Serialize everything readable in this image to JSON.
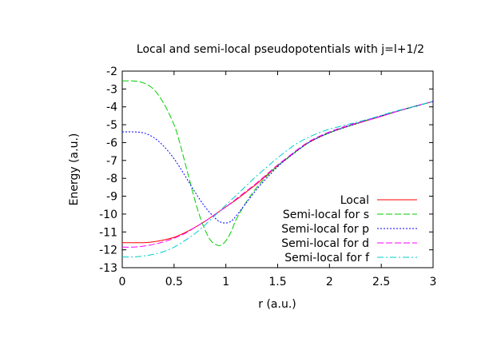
{
  "chart_data": {
    "type": "line",
    "title": "Local and semi-local pseudopotentials with j=l+1/2",
    "xlabel": "r (a.u.)",
    "ylabel": "Energy (a.u.)",
    "xlim": [
      0,
      3
    ],
    "ylim": [
      -13,
      -2
    ],
    "xticks": [
      0,
      0.5,
      1,
      1.5,
      2,
      2.5,
      3
    ],
    "xtick_labels": [
      "0",
      "0.5",
      "1",
      "1.5",
      "2",
      "2.5",
      "3"
    ],
    "yticks": [
      -13,
      -12,
      -11,
      -10,
      -9,
      -8,
      -7,
      -6,
      -5,
      -4,
      -3,
      -2
    ],
    "ytick_labels": [
      "-13",
      "-12",
      "-11",
      "-10",
      "-9",
      "-8",
      "-7",
      "-6",
      "-5",
      "-4",
      "-3",
      "-2"
    ],
    "grid": false,
    "legend_position": "bottom-right",
    "series": [
      {
        "name": "Local",
        "color": "#ff0000",
        "dash": "solid",
        "x": [
          0,
          0.1,
          0.2,
          0.3,
          0.4,
          0.5,
          0.6,
          0.7,
          0.8,
          0.9,
          1.0,
          1.1,
          1.2,
          1.3,
          1.4,
          1.5,
          1.6,
          1.7,
          1.8,
          1.9,
          2.0,
          2.2,
          2.4,
          2.6,
          2.8,
          3.0
        ],
        "y": [
          -11.6,
          -11.6,
          -11.6,
          -11.55,
          -11.45,
          -11.3,
          -11.05,
          -10.75,
          -10.4,
          -10.0,
          -9.6,
          -9.2,
          -8.75,
          -8.3,
          -7.8,
          -7.3,
          -6.85,
          -6.4,
          -6.0,
          -5.7,
          -5.45,
          -5.05,
          -4.7,
          -4.35,
          -4.0,
          -3.7
        ]
      },
      {
        "name": "Semi-local for s",
        "color": "#00cc00",
        "dash": "longdash",
        "x": [
          0,
          0.1,
          0.2,
          0.3,
          0.4,
          0.5,
          0.55,
          0.6,
          0.65,
          0.7,
          0.75,
          0.8,
          0.85,
          0.9,
          0.95,
          1.0,
          1.05,
          1.1,
          1.2,
          1.3,
          1.4,
          1.5,
          1.6,
          1.8,
          2.0,
          2.2,
          2.5,
          3.0
        ],
        "y": [
          -2.55,
          -2.55,
          -2.65,
          -3.0,
          -3.8,
          -5.0,
          -5.9,
          -7.0,
          -8.1,
          -9.2,
          -10.15,
          -10.9,
          -11.45,
          -11.7,
          -11.75,
          -11.5,
          -11.0,
          -10.3,
          -9.3,
          -8.5,
          -7.85,
          -7.3,
          -6.85,
          -6.0,
          -5.45,
          -5.05,
          -4.5,
          -3.7
        ]
      },
      {
        "name": "Semi-local for p",
        "color": "#0000ff",
        "dash": "dotted",
        "x": [
          0,
          0.1,
          0.2,
          0.3,
          0.4,
          0.5,
          0.6,
          0.7,
          0.8,
          0.9,
          0.95,
          1.0,
          1.05,
          1.1,
          1.2,
          1.3,
          1.4,
          1.5,
          1.6,
          1.8,
          2.0,
          2.2,
          2.5,
          3.0
        ],
        "y": [
          -5.4,
          -5.4,
          -5.45,
          -5.7,
          -6.2,
          -6.9,
          -7.8,
          -8.75,
          -9.6,
          -10.25,
          -10.45,
          -10.5,
          -10.4,
          -10.1,
          -9.35,
          -8.6,
          -7.95,
          -7.35,
          -6.85,
          -6.0,
          -5.45,
          -5.05,
          -4.5,
          -3.7
        ]
      },
      {
        "name": "Semi-local for d",
        "color": "#ff00ff",
        "dash": "longdash",
        "x": [
          0,
          0.1,
          0.2,
          0.3,
          0.4,
          0.5,
          0.6,
          0.7,
          0.8,
          0.9,
          1.0,
          1.1,
          1.2,
          1.3,
          1.4,
          1.5,
          1.6,
          1.7,
          1.8,
          1.9,
          2.0,
          2.2,
          2.4,
          2.6,
          2.8,
          3.0
        ],
        "y": [
          -11.85,
          -11.85,
          -11.8,
          -11.7,
          -11.55,
          -11.35,
          -11.1,
          -10.75,
          -10.4,
          -10.0,
          -9.6,
          -9.15,
          -8.7,
          -8.25,
          -7.75,
          -7.25,
          -6.8,
          -6.35,
          -5.95,
          -5.65,
          -5.4,
          -5.0,
          -4.7,
          -4.35,
          -4.0,
          -3.7
        ]
      },
      {
        "name": "Semi-local for f",
        "color": "#00cccc",
        "dash": "dashdot",
        "x": [
          0,
          0.1,
          0.2,
          0.3,
          0.4,
          0.5,
          0.6,
          0.7,
          0.8,
          0.9,
          1.0,
          1.1,
          1.2,
          1.3,
          1.4,
          1.5,
          1.6,
          1.7,
          1.8,
          1.9,
          2.0,
          2.2,
          2.4,
          2.6,
          2.8,
          3.0
        ],
        "y": [
          -12.4,
          -12.4,
          -12.35,
          -12.25,
          -12.1,
          -11.85,
          -11.5,
          -11.1,
          -10.6,
          -10.05,
          -9.5,
          -8.95,
          -8.4,
          -7.85,
          -7.35,
          -6.85,
          -6.4,
          -6.0,
          -5.7,
          -5.45,
          -5.25,
          -4.95,
          -4.65,
          -4.3,
          -4.0,
          -3.7
        ]
      }
    ]
  }
}
